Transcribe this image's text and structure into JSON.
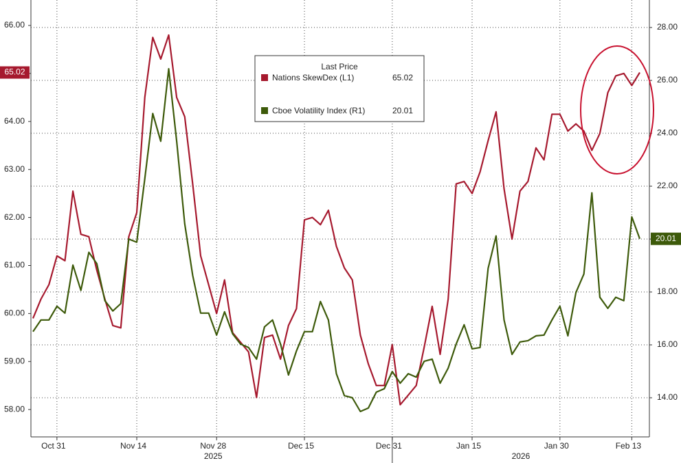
{
  "chart_data": {
    "type": "line",
    "legend_title": "Last Price",
    "categories": [
      null,
      null,
      null,
      "Oct 31",
      null,
      null,
      null,
      null,
      null,
      null,
      null,
      null,
      null,
      "Nov 14",
      null,
      null,
      null,
      null,
      null,
      null,
      null,
      null,
      null,
      "Nov 28",
      null,
      null,
      null,
      null,
      null,
      null,
      null,
      null,
      null,
      null,
      "Dec 15",
      null,
      null,
      null,
      null,
      null,
      null,
      null,
      null,
      null,
      null,
      "Dec 31",
      null,
      null,
      null,
      null,
      null,
      null,
      null,
      null,
      null,
      "Jan 15",
      null,
      null,
      null,
      null,
      null,
      null,
      null,
      null,
      null,
      null,
      "Jan 30",
      null,
      null,
      null,
      null,
      null,
      null,
      null,
      null,
      "Feb 13",
      null
    ],
    "x_groups": [
      "2025",
      "2026"
    ],
    "series": [
      {
        "name": "Nations SkewDex (L1)",
        "color": "#a6192e",
        "axis": "y",
        "values": [
          59.9,
          60.3,
          60.6,
          61.2,
          61.1,
          62.55,
          61.65,
          61.6,
          60.9,
          60.3,
          59.75,
          59.7,
          61.6,
          62.1,
          64.5,
          65.75,
          65.3,
          65.8,
          64.5,
          64.1,
          62.7,
          61.2,
          60.6,
          60.0,
          60.7,
          59.6,
          59.4,
          59.2,
          58.25,
          59.5,
          59.55,
          59.05,
          59.75,
          60.1,
          61.95,
          62.0,
          61.85,
          62.15,
          61.4,
          60.95,
          60.7,
          59.55,
          58.95,
          58.5,
          58.5,
          59.35,
          58.1,
          58.3,
          58.5,
          59.3,
          60.15,
          59.15,
          60.3,
          62.7,
          62.75,
          62.5,
          62.95,
          63.6,
          64.2,
          62.6,
          61.55,
          62.55,
          62.75,
          63.45,
          63.2,
          64.15,
          64.15,
          63.8,
          63.95,
          63.8,
          63.4,
          63.75,
          64.6,
          64.95,
          65.0,
          64.75,
          65.02
        ]
      },
      {
        "name": "Cboe Volatility Index (R1)",
        "color": "#3d5a0a",
        "axis": "y2",
        "values": [
          16.5,
          16.94,
          16.94,
          17.46,
          17.2,
          19.02,
          18.06,
          19.5,
          19.07,
          17.67,
          17.28,
          17.56,
          20.0,
          19.88,
          22.28,
          24.75,
          23.7,
          26.44,
          23.7,
          20.58,
          18.63,
          17.2,
          17.2,
          16.37,
          17.25,
          16.42,
          16.03,
          15.9,
          15.46,
          16.68,
          16.94,
          16.03,
          14.86,
          15.77,
          16.5,
          16.5,
          17.64,
          16.94,
          14.91,
          14.08,
          14.0,
          13.48,
          13.61,
          14.21,
          14.34,
          14.99,
          14.55,
          14.91,
          14.78,
          15.38,
          15.46,
          14.55,
          15.12,
          16.03,
          16.76,
          15.85,
          15.9,
          18.89,
          20.12,
          16.94,
          15.64,
          16.11,
          16.16,
          16.34,
          16.37,
          16.94,
          17.46,
          16.34,
          17.98,
          18.68,
          21.75,
          17.8,
          17.38,
          17.8,
          17.67,
          20.84,
          20.01
        ]
      }
    ],
    "ylim": [
      57.43,
      66.53
    ],
    "yticks": [
      {
        "value": 58,
        "label": "58.00"
      },
      {
        "value": 59,
        "label": "59.00"
      },
      {
        "value": 60,
        "label": "60.00"
      },
      {
        "value": 61,
        "label": "61.00"
      },
      {
        "value": 62,
        "label": "62.00"
      },
      {
        "value": 63,
        "label": "63.00"
      },
      {
        "value": 64,
        "label": "64.00"
      },
      {
        "value": 65,
        "label": "65.00"
      },
      {
        "value": 66,
        "label": "66.00"
      }
    ],
    "y2lim": [
      12.52,
      29.04
    ],
    "y2ticks": [
      {
        "value": 14,
        "label": "14.00"
      },
      {
        "value": 16,
        "label": "16.00"
      },
      {
        "value": 18,
        "label": "18.00"
      },
      {
        "value": 20,
        "label": "20.00"
      },
      {
        "value": 22,
        "label": "22.00"
      },
      {
        "value": 24,
        "label": "24.00"
      },
      {
        "value": 26,
        "label": "26.00"
      },
      {
        "value": 28,
        "label": "28.00"
      }
    ],
    "grid": true
  }
}
